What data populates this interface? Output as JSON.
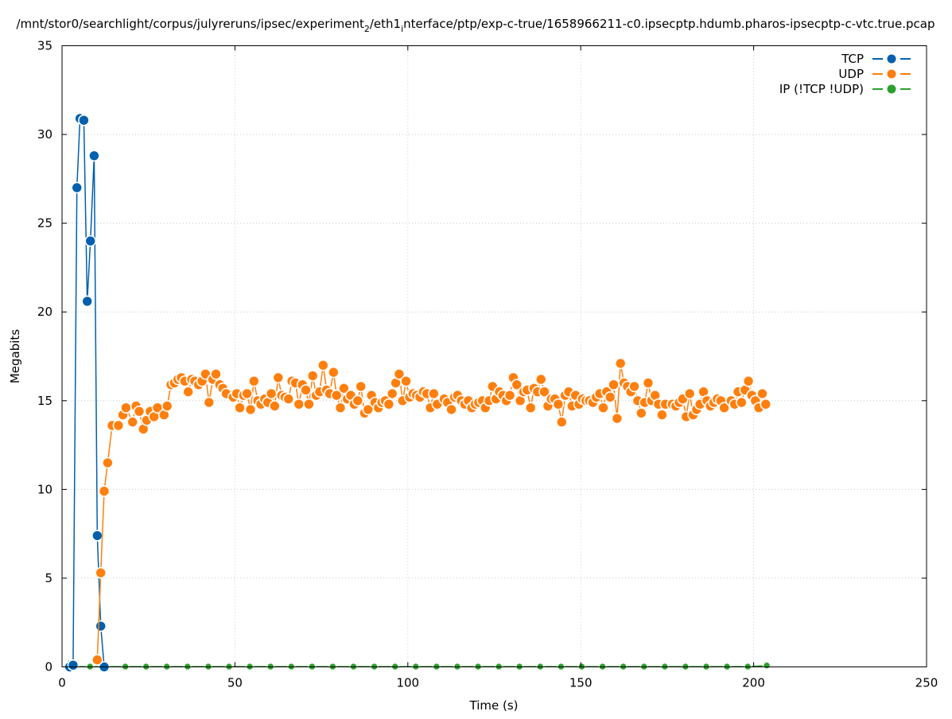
{
  "chart_data": {
    "type": "line",
    "title": "/mnt/stor0/searchlight/corpus/julyreruns/ipsec/experiment_2/eth1_interface/ptp/exp-c-true/1658966211-c0.ipsecptp.hdumb.pharos-ipsecptp-c-vtc.true.pcap",
    "title_parts": {
      "a": "/mnt/stor0/searchlight/corpus/julyreruns/ipsec/experiment",
      "sub1": "2",
      "b": "/eth1",
      "sub2": "i",
      "c": "nterface/ptp/exp-c-true/1658966211-c0.ipsecptp.hdumb.pharos-ipsecptp-c-vtc.true.pcap"
    },
    "xlabel": "Time (s)",
    "ylabel": "Megabits",
    "xlim": [
      0,
      250
    ],
    "ylim": [
      0,
      35
    ],
    "x_ticks": [
      0,
      50,
      100,
      150,
      200,
      250
    ],
    "y_ticks": [
      0,
      5,
      10,
      15,
      20,
      25,
      30,
      35
    ],
    "grid": true,
    "legend_position": "top-right",
    "series": [
      {
        "name": "TCP",
        "color": "#0060ad",
        "points": [
          [
            2.2,
            0
          ],
          [
            3.2,
            0.1
          ],
          [
            4.3,
            27.0
          ],
          [
            5.2,
            30.9
          ],
          [
            6.3,
            30.8
          ],
          [
            7.3,
            20.6
          ],
          [
            8.2,
            24.0
          ],
          [
            9.3,
            28.8
          ],
          [
            10.2,
            7.4
          ],
          [
            11.2,
            2.3
          ],
          [
            12.2,
            0
          ]
        ]
      },
      {
        "name": "UDP",
        "color": "#ff7f0e",
        "points": [
          [
            10.2,
            0.4
          ],
          [
            11.2,
            5.3
          ],
          [
            12.2,
            9.9
          ],
          [
            13.2,
            11.5
          ],
          [
            14.5,
            13.6
          ],
          [
            16.3,
            13.6
          ],
          [
            17.6,
            14.2
          ],
          [
            18.5,
            14.6
          ],
          [
            20.4,
            13.8
          ],
          [
            21.4,
            14.7
          ],
          [
            22.3,
            14.4
          ],
          [
            23.5,
            13.4
          ],
          [
            24.5,
            13.9
          ],
          [
            25.5,
            14.4
          ],
          [
            26.6,
            14.1
          ],
          [
            27.6,
            14.6
          ],
          [
            29.5,
            14.2
          ],
          [
            30.4,
            14.7
          ],
          [
            31.5,
            15.9
          ],
          [
            32.5,
            16.0
          ],
          [
            33.5,
            16.2
          ],
          [
            34.5,
            16.3
          ],
          [
            35.5,
            16.1
          ],
          [
            36.5,
            15.5
          ],
          [
            37.5,
            16.2
          ],
          [
            38.4,
            16.1
          ],
          [
            39.5,
            15.9
          ],
          [
            40.5,
            16.1
          ],
          [
            41.5,
            16.5
          ],
          [
            42.5,
            14.9
          ],
          [
            43.6,
            16.2
          ],
          [
            44.5,
            16.5
          ],
          [
            45.6,
            15.9
          ],
          [
            46.5,
            15.7
          ],
          [
            47.5,
            15.4
          ],
          [
            49.5,
            15.2
          ],
          [
            50.5,
            15.4
          ],
          [
            51.4,
            14.6
          ],
          [
            52.5,
            15.3
          ],
          [
            53.5,
            15.4
          ],
          [
            54.5,
            14.5
          ],
          [
            55.5,
            16.1
          ],
          [
            56.6,
            15.0
          ],
          [
            57.5,
            14.8
          ],
          [
            58.6,
            15.1
          ],
          [
            59.5,
            14.9
          ],
          [
            60.5,
            15.4
          ],
          [
            61.5,
            14.7
          ],
          [
            62.5,
            16.3
          ],
          [
            63.5,
            15.3
          ],
          [
            64.5,
            15.2
          ],
          [
            65.5,
            15.1
          ],
          [
            66.5,
            16.1
          ],
          [
            67.5,
            16.0
          ],
          [
            68.5,
            14.8
          ],
          [
            69.5,
            15.9
          ],
          [
            70.5,
            15.6
          ],
          [
            71.4,
            14.8
          ],
          [
            72.5,
            16.4
          ],
          [
            73.5,
            15.3
          ],
          [
            74.5,
            15.5
          ],
          [
            75.5,
            17.0
          ],
          [
            76.5,
            15.6
          ],
          [
            77.4,
            15.4
          ],
          [
            78.5,
            16.6
          ],
          [
            79.4,
            15.3
          ],
          [
            80.5,
            14.6
          ],
          [
            81.5,
            15.7
          ],
          [
            82.5,
            15.1
          ],
          [
            83.5,
            15.3
          ],
          [
            84.5,
            14.8
          ],
          [
            85.5,
            15.0
          ],
          [
            86.4,
            15.8
          ],
          [
            87.5,
            14.3
          ],
          [
            88.5,
            14.5
          ],
          [
            89.5,
            15.3
          ],
          [
            90.5,
            14.9
          ],
          [
            91.5,
            14.6
          ],
          [
            92.5,
            14.9
          ],
          [
            93.5,
            15.0
          ],
          [
            94.5,
            14.8
          ],
          [
            95.5,
            15.4
          ],
          [
            96.5,
            16.0
          ],
          [
            97.5,
            16.5
          ],
          [
            98.5,
            15.0
          ],
          [
            99.5,
            16.1
          ],
          [
            100.5,
            15.2
          ],
          [
            101.5,
            15.4
          ],
          [
            102.5,
            15.3
          ],
          [
            103.5,
            15.2
          ],
          [
            104.5,
            15.5
          ],
          [
            105.5,
            15.4
          ],
          [
            106.5,
            14.6
          ],
          [
            107.5,
            15.4
          ],
          [
            108.5,
            14.8
          ],
          [
            110.5,
            15.1
          ],
          [
            111.5,
            14.9
          ],
          [
            112.6,
            14.5
          ],
          [
            113.5,
            15.2
          ],
          [
            114.4,
            15.3
          ],
          [
            115.5,
            15.0
          ],
          [
            116.5,
            14.8
          ],
          [
            117.5,
            15.0
          ],
          [
            118.5,
            14.6
          ],
          [
            119.5,
            14.8
          ],
          [
            120.5,
            14.9
          ],
          [
            121.6,
            15.0
          ],
          [
            122.4,
            14.6
          ],
          [
            123.5,
            15.0
          ],
          [
            124.5,
            15.8
          ],
          [
            125.5,
            15.1
          ],
          [
            126.5,
            15.5
          ],
          [
            127.5,
            15.3
          ],
          [
            128.5,
            15.0
          ],
          [
            129.5,
            15.3
          ],
          [
            130.5,
            16.3
          ],
          [
            131.5,
            15.9
          ],
          [
            132.5,
            15.0
          ],
          [
            133.5,
            15.5
          ],
          [
            134.5,
            15.6
          ],
          [
            135.5,
            14.6
          ],
          [
            136.5,
            15.7
          ],
          [
            137.5,
            15.5
          ],
          [
            138.5,
            16.2
          ],
          [
            139.5,
            15.5
          ],
          [
            140.5,
            14.7
          ],
          [
            141.5,
            15.1
          ],
          [
            142.5,
            15.1
          ],
          [
            143.5,
            14.8
          ],
          [
            144.5,
            13.8
          ],
          [
            145.5,
            15.3
          ],
          [
            146.5,
            15.5
          ],
          [
            147.5,
            14.7
          ],
          [
            148.5,
            15.3
          ],
          [
            149.5,
            14.8
          ],
          [
            150.5,
            15.1
          ],
          [
            151.5,
            15.0
          ],
          [
            152.5,
            15.0
          ],
          [
            153.5,
            14.9
          ],
          [
            154.5,
            15.2
          ],
          [
            155.5,
            15.4
          ],
          [
            156.5,
            14.6
          ],
          [
            157.5,
            15.5
          ],
          [
            158.5,
            15.2
          ],
          [
            159.5,
            15.9
          ],
          [
            160.5,
            14.0
          ],
          [
            161.5,
            17.1
          ],
          [
            162.5,
            16.0
          ],
          [
            163.5,
            15.8
          ],
          [
            164.5,
            15.5
          ],
          [
            165.5,
            15.8
          ],
          [
            166.5,
            15.0
          ],
          [
            167.5,
            14.3
          ],
          [
            168.5,
            14.9
          ],
          [
            169.5,
            16.0
          ],
          [
            170.5,
            15.0
          ],
          [
            171.5,
            15.3
          ],
          [
            172.5,
            14.8
          ],
          [
            173.5,
            14.2
          ],
          [
            174.5,
            14.8
          ],
          [
            176.5,
            14.8
          ],
          [
            177.5,
            14.7
          ],
          [
            178.5,
            14.9
          ],
          [
            179.5,
            15.1
          ],
          [
            180.5,
            14.1
          ],
          [
            181.5,
            15.4
          ],
          [
            182.5,
            14.2
          ],
          [
            183.5,
            14.5
          ],
          [
            184.5,
            14.8
          ],
          [
            185.5,
            15.5
          ],
          [
            186.5,
            15.0
          ],
          [
            187.5,
            14.7
          ],
          [
            188.5,
            14.9
          ],
          [
            189.5,
            15.1
          ],
          [
            190.5,
            15.0
          ],
          [
            191.5,
            14.6
          ],
          [
            193.5,
            15.0
          ],
          [
            194.5,
            14.8
          ],
          [
            195.5,
            15.5
          ],
          [
            196.5,
            14.9
          ],
          [
            197.5,
            15.6
          ],
          [
            198.5,
            16.1
          ],
          [
            199.5,
            15.3
          ],
          [
            200.5,
            15.0
          ],
          [
            201.5,
            14.6
          ],
          [
            202.5,
            15.4
          ],
          [
            203.5,
            14.8
          ]
        ]
      },
      {
        "name": "IP (!TCP  !UDP)",
        "color": "#2ca02c",
        "points": [
          [
            2.2,
            0.2
          ],
          [
            3.0,
            0.2
          ],
          [
            3.8,
            0.02
          ],
          [
            8.1,
            0.02
          ],
          [
            12.3,
            0.02
          ],
          [
            18.3,
            0.02
          ],
          [
            24.3,
            0.02
          ],
          [
            30.3,
            0.02
          ],
          [
            36.3,
            0.02
          ],
          [
            42.3,
            0.02
          ],
          [
            48.3,
            0.02
          ],
          [
            54.3,
            0.02
          ],
          [
            60.3,
            0.02
          ],
          [
            66.3,
            0.02
          ],
          [
            72.3,
            0.02
          ],
          [
            78.3,
            0.02
          ],
          [
            84.3,
            0.02
          ],
          [
            90.3,
            0.02
          ],
          [
            96.3,
            0.02
          ],
          [
            102.3,
            0.02
          ],
          [
            108.3,
            0.02
          ],
          [
            114.3,
            0.02
          ],
          [
            120.3,
            0.02
          ],
          [
            126.3,
            0.02
          ],
          [
            132.3,
            0.02
          ],
          [
            138.3,
            0.02
          ],
          [
            144.3,
            0.02
          ],
          [
            150.3,
            0.02
          ],
          [
            156.3,
            0.02
          ],
          [
            162.3,
            0.02
          ],
          [
            168.3,
            0.02
          ],
          [
            174.3,
            0.02
          ],
          [
            180.3,
            0.02
          ],
          [
            186.3,
            0.02
          ],
          [
            192.3,
            0.02
          ],
          [
            198.3,
            0.02
          ],
          [
            203.8,
            0.08
          ]
        ]
      }
    ]
  }
}
